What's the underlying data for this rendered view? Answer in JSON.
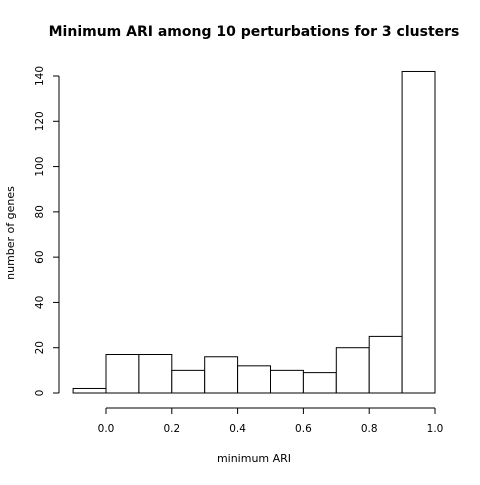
{
  "chart_data": {
    "type": "bar",
    "title": "Minimum ARI among 10 perturbations for 3 clusters",
    "xlabel": "minimum ARI",
    "ylabel": "number of genes",
    "bin_edges": [
      -0.1,
      0.0,
      0.1,
      0.2,
      0.3,
      0.4,
      0.5,
      0.6,
      0.7,
      0.8,
      0.9,
      1.0
    ],
    "values": [
      2,
      17,
      17,
      10,
      16,
      12,
      10,
      9,
      20,
      25,
      142
    ],
    "xlim": [
      -0.1,
      1.0
    ],
    "ylim": [
      0,
      145
    ],
    "xticks": [
      0.0,
      0.2,
      0.4,
      0.6,
      0.8,
      1.0
    ],
    "xtick_labels": [
      "0.0",
      "0.2",
      "0.4",
      "0.6",
      "0.8",
      "1.0"
    ],
    "yticks": [
      0,
      20,
      40,
      60,
      80,
      100,
      120,
      140
    ],
    "ytick_labels": [
      "0",
      "20",
      "40",
      "60",
      "80",
      "100",
      "120",
      "140"
    ],
    "grid": false,
    "legend": "none"
  }
}
